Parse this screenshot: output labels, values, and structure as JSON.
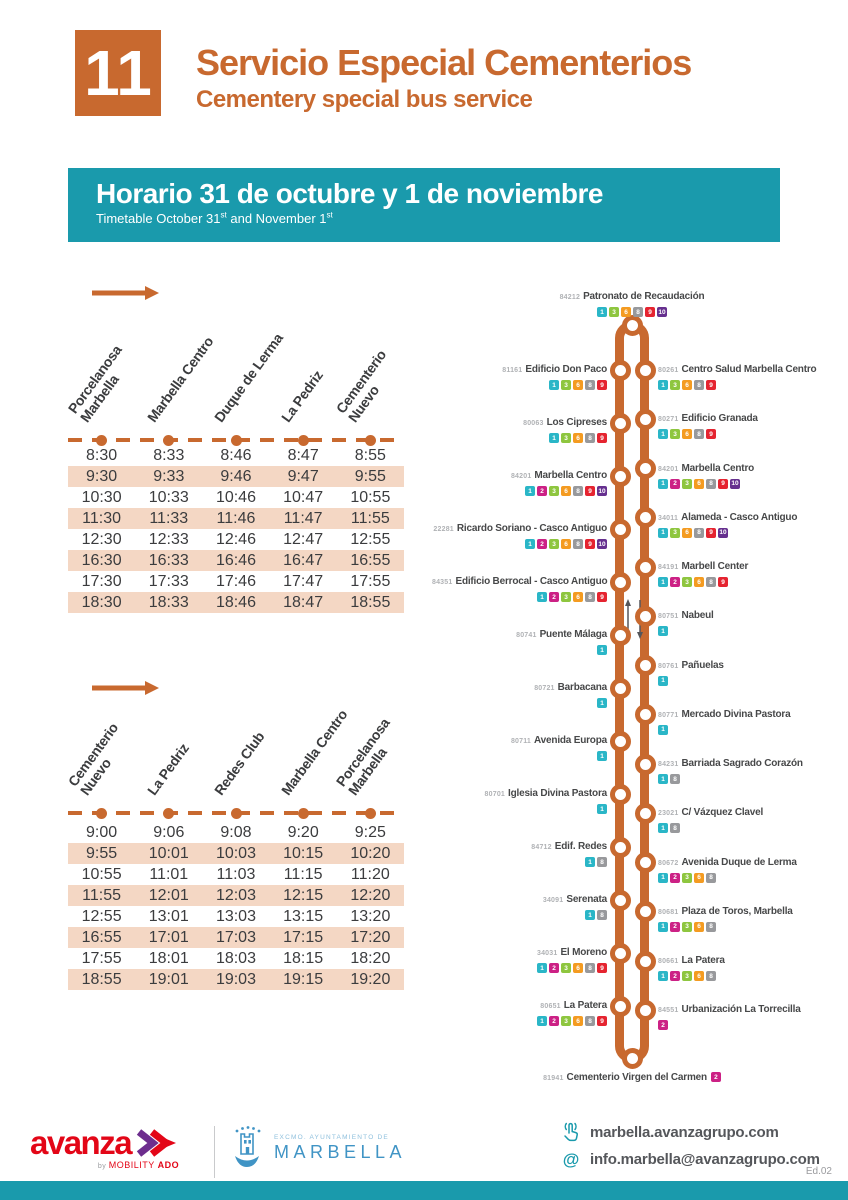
{
  "header": {
    "route_number": "11",
    "title": "Servicio Especial Cementerios",
    "subtitle": "Cementery special bus service"
  },
  "banner": {
    "title": "Horario 31 de octubre y 1 de noviembre",
    "subtitle_pre": "Timetable October 31",
    "subtitle_sup1": "st",
    "subtitle_mid": " and November 1",
    "subtitle_sup2": "st"
  },
  "theme": {
    "orange": "#c8692f",
    "teal": "#1a9aac",
    "row_shade": "#f4d7c4"
  },
  "line_colors": {
    "1": "#2ab6c7",
    "2": "#cc2185",
    "3": "#8ec63f",
    "6": "#f49b21",
    "8": "#98999c",
    "9": "#e52430",
    "10": "#66308f"
  },
  "timetables": [
    {
      "stops": [
        "Porcelanosa\nMarbella",
        "Marbella Centro",
        "Duque de Lerma",
        "La Pedriz",
        "Cementerio\nNuevo"
      ],
      "rows": [
        [
          "8:30",
          "8:33",
          "8:46",
          "8:47",
          "8:55"
        ],
        [
          "9:30",
          "9:33",
          "9:46",
          "9:47",
          "9:55"
        ],
        [
          "10:30",
          "10:33",
          "10:46",
          "10:47",
          "10:55"
        ],
        [
          "11:30",
          "11:33",
          "11:46",
          "11:47",
          "11:55"
        ],
        [
          "12:30",
          "12:33",
          "12:46",
          "12:47",
          "12:55"
        ],
        [
          "16:30",
          "16:33",
          "16:46",
          "16:47",
          "16:55"
        ],
        [
          "17:30",
          "17:33",
          "17:46",
          "17:47",
          "17:55"
        ],
        [
          "18:30",
          "18:33",
          "18:46",
          "18:47",
          "18:55"
        ]
      ]
    },
    {
      "stops": [
        "Cementerio\nNuevo",
        "La Pedriz",
        "Redes Club",
        "Marbella Centro",
        "Porcelanosa\nMarbella"
      ],
      "rows": [
        [
          "9:00",
          "9:06",
          "9:08",
          "9:20",
          "9:25"
        ],
        [
          "9:55",
          "10:01",
          "10:03",
          "10:15",
          "10:20"
        ],
        [
          "10:55",
          "11:01",
          "11:03",
          "11:15",
          "11:20"
        ],
        [
          "11:55",
          "12:01",
          "12:03",
          "12:15",
          "12:20"
        ],
        [
          "12:55",
          "13:01",
          "13:03",
          "13:15",
          "13:20"
        ],
        [
          "16:55",
          "17:01",
          "17:03",
          "17:15",
          "17:20"
        ],
        [
          "17:55",
          "18:01",
          "18:03",
          "18:15",
          "18:20"
        ],
        [
          "18:55",
          "19:01",
          "19:03",
          "19:15",
          "19:20"
        ]
      ]
    }
  ],
  "route_map": {
    "top_stop": {
      "code": "84212",
      "name": "Patronato de Recaudación",
      "lines": [
        "1",
        "3",
        "6",
        "8",
        "9",
        "10"
      ]
    },
    "bottom_stop": {
      "code": "81941",
      "name": "Cementerio Virgen del Carmen",
      "lines": [
        "2"
      ]
    },
    "left_stops": [
      {
        "code": "81161",
        "name": "Edificio Don Paco",
        "lines": [
          "1",
          "3",
          "6",
          "8",
          "9"
        ]
      },
      {
        "code": "80063",
        "name": "Los Cipreses",
        "lines": [
          "1",
          "3",
          "6",
          "8",
          "9"
        ]
      },
      {
        "code": "84201",
        "name": "Marbella Centro",
        "lines": [
          "1",
          "2",
          "3",
          "6",
          "8",
          "9",
          "10"
        ]
      },
      {
        "code": "22281",
        "name": "Ricardo Soriano - Casco Antiguo",
        "lines": [
          "1",
          "2",
          "3",
          "6",
          "8",
          "9",
          "10"
        ]
      },
      {
        "code": "84351",
        "name": "Edificio Berrocal - Casco Antiguo",
        "lines": [
          "1",
          "2",
          "3",
          "6",
          "8",
          "9"
        ]
      },
      {
        "code": "80741",
        "name": "Puente Málaga",
        "lines": [
          "1"
        ]
      },
      {
        "code": "80721",
        "name": "Barbacana",
        "lines": [
          "1"
        ]
      },
      {
        "code": "80711",
        "name": "Avenida Europa",
        "lines": [
          "1"
        ]
      },
      {
        "code": "80701",
        "name": "Iglesia Divina Pastora",
        "lines": [
          "1"
        ]
      },
      {
        "code": "84712",
        "name": "Edif. Redes",
        "lines": [
          "1",
          "8"
        ]
      },
      {
        "code": "34091",
        "name": "Serenata",
        "lines": [
          "1",
          "8"
        ]
      },
      {
        "code": "34031",
        "name": "El Moreno",
        "lines": [
          "1",
          "2",
          "3",
          "6",
          "8",
          "9"
        ]
      },
      {
        "code": "80651",
        "name": "La Patera",
        "lines": [
          "1",
          "2",
          "3",
          "6",
          "8",
          "9"
        ]
      }
    ],
    "right_stops": [
      {
        "code": "80261",
        "name": "Centro Salud Marbella Centro",
        "lines": [
          "1",
          "3",
          "6",
          "8",
          "9"
        ]
      },
      {
        "code": "80271",
        "name": "Edificio Granada",
        "lines": [
          "1",
          "3",
          "6",
          "8",
          "9"
        ]
      },
      {
        "code": "84201",
        "name": "Marbella Centro",
        "lines": [
          "1",
          "2",
          "3",
          "6",
          "8",
          "9",
          "10"
        ]
      },
      {
        "code": "34011",
        "name": "Alameda - Casco Antiguo",
        "lines": [
          "1",
          "3",
          "6",
          "8",
          "9",
          "10"
        ]
      },
      {
        "code": "84191",
        "name": "Marbell Center",
        "lines": [
          "1",
          "2",
          "3",
          "6",
          "8",
          "9"
        ]
      },
      {
        "code": "80751",
        "name": "Nabeul",
        "lines": [
          "1"
        ]
      },
      {
        "code": "80761",
        "name": "Pañuelas",
        "lines": [
          "1"
        ]
      },
      {
        "code": "80771",
        "name": "Mercado Divina Pastora",
        "lines": [
          "1"
        ]
      },
      {
        "code": "84231",
        "name": "Barriada Sagrado Corazón",
        "lines": [
          "1",
          "8"
        ]
      },
      {
        "code": "23021",
        "name": "C/ Vázquez Clavel",
        "lines": [
          "1",
          "8"
        ]
      },
      {
        "code": "80672",
        "name": "Avenida Duque de Lerma",
        "lines": [
          "1",
          "2",
          "3",
          "6",
          "8"
        ]
      },
      {
        "code": "80681",
        "name": "Plaza de Toros, Marbella",
        "lines": [
          "1",
          "2",
          "3",
          "6",
          "8"
        ]
      },
      {
        "code": "80661",
        "name": "La Patera",
        "lines": [
          "1",
          "2",
          "3",
          "6",
          "8"
        ]
      },
      {
        "code": "84551",
        "name": "Urbanización La Torrecilla",
        "lines": [
          "2"
        ]
      }
    ]
  },
  "footer": {
    "avanza_word": "avanza",
    "avanza_by": "by ",
    "avanza_mobility": "MOBILITY ",
    "avanza_ado": "ADO",
    "marbella_small": "EXCMO. AYUNTAMIENTO DE",
    "marbella_large": "MARBELLA",
    "website": "marbella.avanzagrupo.com",
    "email": "info.marbella@avanzagrupo.com",
    "edition": "Ed.02"
  }
}
